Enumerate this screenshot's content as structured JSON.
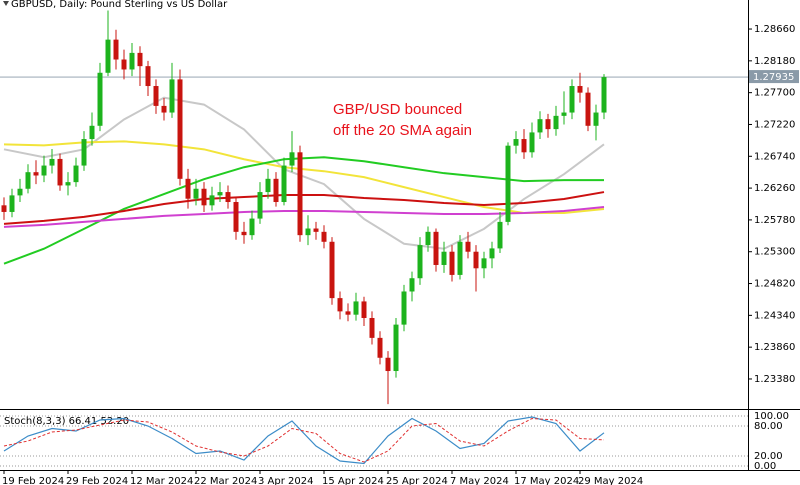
{
  "chart_data": {
    "type": "candlestick",
    "title": "GBPUSD, Daily:  Pound Sterling vs US Dollar",
    "annotation": [
      "GBP/USD bounced",
      "off the 20 SMA again"
    ],
    "annotation_color": "#e8121b",
    "categories": [
      "19 Feb 2024",
      null,
      null,
      null,
      null,
      null,
      null,
      null,
      "29 Feb 2024",
      null,
      null,
      null,
      null,
      null,
      null,
      null,
      "12 Mar 2024",
      null,
      null,
      null,
      null,
      null,
      null,
      null,
      "22 Mar 2024",
      null,
      null,
      null,
      null,
      null,
      null,
      null,
      "3 Apr 2024",
      null,
      null,
      null,
      null,
      null,
      null,
      null,
      "15 Apr 2024",
      null,
      null,
      null,
      null,
      null,
      null,
      null,
      "25 Apr 2024",
      null,
      null,
      null,
      null,
      null,
      null,
      null,
      "7 May 2024",
      null,
      null,
      null,
      null,
      null,
      null,
      null,
      "17 May 2024",
      null,
      null,
      null,
      null,
      null,
      null,
      null,
      "29 May 2024",
      null,
      null,
      null
    ],
    "open": [
      1.26,
      1.259,
      1.2615,
      1.2625,
      1.265,
      1.2645,
      1.266,
      1.267,
      1.263,
      1.2635,
      1.266,
      1.27,
      1.272,
      1.28,
      1.285,
      1.282,
      1.2805,
      1.283,
      1.281,
      1.278,
      1.275,
      1.274,
      1.279,
      1.264,
      1.261,
      1.2625,
      1.26,
      1.2615,
      1.262,
      1.2605,
      1.256,
      1.2555,
      1.258,
      1.262,
      1.264,
      1.2605,
      1.266,
      1.268,
      1.2555,
      1.2565,
      1.256,
      1.2545,
      1.246,
      1.244,
      1.2435,
      1.2455,
      1.243,
      1.24,
      1.237,
      1.235,
      1.242,
      1.247,
      1.249,
      1.254,
      1.256,
      1.251,
      1.253,
      1.2495,
      1.2545,
      1.253,
      1.2505,
      1.252,
      1.2535,
      1.2575,
      1.269,
      1.27,
      1.268,
      1.271,
      1.273,
      1.2715,
      1.2735,
      1.274,
      1.278,
      1.277,
      1.272,
      1.274
    ],
    "high": [
      1.2612,
      1.2625,
      1.264,
      1.2662,
      1.2668,
      1.2675,
      1.2685,
      1.2678,
      1.265,
      1.2672,
      1.2712,
      1.274,
      1.2815,
      1.2894,
      1.2865,
      1.2835,
      1.2845,
      1.284,
      1.2818,
      1.279,
      1.2762,
      1.2815,
      1.2805,
      1.2655,
      1.264,
      1.2635,
      1.2628,
      1.2635,
      1.263,
      1.2612,
      1.2575,
      1.2592,
      1.2635,
      1.2655,
      1.265,
      1.2672,
      1.2712,
      1.269,
      1.2585,
      1.2575,
      1.257,
      1.2552,
      1.247,
      1.2452,
      1.2468,
      1.2462,
      1.244,
      1.241,
      1.238,
      1.243,
      1.248,
      1.25,
      1.2552,
      1.2568,
      1.2565,
      1.2545,
      1.254,
      1.2555,
      1.256,
      1.254,
      1.253,
      1.2545,
      1.259,
      1.2695,
      1.2712,
      1.2715,
      1.2725,
      1.2742,
      1.2738,
      1.275,
      1.2772,
      1.279,
      1.28,
      1.2778,
      1.2752,
      1.2798
    ],
    "low": [
      1.2578,
      1.2582,
      1.2605,
      1.2618,
      1.2632,
      1.2635,
      1.2648,
      1.2622,
      1.2615,
      1.2628,
      1.2652,
      1.269,
      1.2712,
      1.2795,
      1.2805,
      1.279,
      1.2795,
      1.278,
      1.2765,
      1.2738,
      1.2728,
      1.2732,
      1.263,
      1.2595,
      1.26,
      1.259,
      1.2592,
      1.2605,
      1.2595,
      1.2548,
      1.2542,
      1.2548,
      1.2572,
      1.261,
      1.2598,
      1.26,
      1.265,
      1.2545,
      1.254,
      1.2548,
      1.2535,
      1.245,
      1.2428,
      1.2425,
      1.2426,
      1.2418,
      1.239,
      1.236,
      1.23,
      1.234,
      1.241,
      1.2455,
      1.248,
      1.253,
      1.25,
      1.2498,
      1.2485,
      1.2488,
      1.252,
      1.247,
      1.249,
      1.2505,
      1.2528,
      1.257,
      1.2678,
      1.267,
      1.2672,
      1.27,
      1.2702,
      1.2705,
      1.2722,
      1.273,
      1.2755,
      1.2712,
      1.2698,
      1.273
    ],
    "close": [
      1.259,
      1.2615,
      1.2625,
      1.265,
      1.2645,
      1.266,
      1.267,
      1.263,
      1.2635,
      1.266,
      1.27,
      1.272,
      1.28,
      1.285,
      1.282,
      1.2805,
      1.283,
      1.281,
      1.278,
      1.275,
      1.274,
      1.279,
      1.264,
      1.261,
      1.2625,
      1.26,
      1.2615,
      1.262,
      1.2605,
      1.256,
      1.2555,
      1.258,
      1.262,
      1.264,
      1.2605,
      1.266,
      1.268,
      1.2555,
      1.2565,
      1.256,
      1.2545,
      1.246,
      1.244,
      1.2435,
      1.2455,
      1.243,
      1.24,
      1.237,
      1.235,
      1.242,
      1.247,
      1.249,
      1.254,
      1.256,
      1.251,
      1.253,
      1.2495,
      1.2545,
      1.253,
      1.2505,
      1.252,
      1.2535,
      1.2575,
      1.269,
      1.27,
      1.268,
      1.271,
      1.273,
      1.2715,
      1.2735,
      1.274,
      1.278,
      1.277,
      1.272,
      1.274,
      1.27935
    ],
    "up_color": "#1db31d",
    "down_color": "#c8140f",
    "lines": [
      {
        "color": "#c8c8c8",
        "x": [
          0,
          5,
          10,
          15,
          20,
          25,
          30,
          35,
          40,
          45,
          50,
          55,
          60,
          65,
          70,
          75
        ],
        "values": [
          1.26845,
          1.26725,
          1.26845,
          1.27295,
          1.27625,
          1.2752,
          1.27145,
          1.26545,
          1.2632,
          1.25795,
          1.2542,
          1.25345,
          1.25645,
          1.26095,
          1.2647,
          1.2692
        ]
      },
      {
        "color": "#f2e43a",
        "x": [
          0,
          5,
          10,
          15,
          20,
          25,
          30,
          35,
          40,
          45,
          50,
          55,
          60,
          65,
          70,
          75
        ],
        "values": [
          1.2692,
          1.26905,
          1.2695,
          1.26965,
          1.2692,
          1.26845,
          1.26695,
          1.26575,
          1.26515,
          1.26425,
          1.26275,
          1.26125,
          1.25975,
          1.25885,
          1.25885,
          1.25945
        ]
      },
      {
        "color": "#22cc22",
        "x": [
          0,
          5,
          10,
          15,
          20,
          25,
          30,
          35,
          40,
          45,
          50,
          55,
          60,
          65,
          70,
          75
        ],
        "values": [
          1.2512,
          1.25345,
          1.25645,
          1.25945,
          1.2617,
          1.26395,
          1.26575,
          1.26695,
          1.26725,
          1.26665,
          1.26575,
          1.26485,
          1.26425,
          1.26365,
          1.2638,
          1.2638
        ]
      },
      {
        "color": "#cc1010",
        "x": [
          0,
          5,
          10,
          15,
          20,
          25,
          30,
          35,
          40,
          45,
          50,
          55,
          60,
          65,
          70,
          75
        ],
        "values": [
          1.2572,
          1.25765,
          1.25825,
          1.25915,
          1.2602,
          1.26095,
          1.26125,
          1.26155,
          1.26155,
          1.2611,
          1.2608,
          1.26035,
          1.26005,
          1.26035,
          1.26095,
          1.262
        ]
      },
      {
        "color": "#d040d0",
        "x": [
          0,
          5,
          10,
          15,
          20,
          25,
          30,
          35,
          40,
          45,
          50,
          55,
          60,
          65,
          70,
          75
        ],
        "values": [
          1.25675,
          1.25705,
          1.2575,
          1.25795,
          1.2584,
          1.2587,
          1.259,
          1.25915,
          1.25915,
          1.259,
          1.25885,
          1.2587,
          1.2587,
          1.25885,
          1.25915,
          1.25975
        ]
      }
    ],
    "ylim": [
      1.22942,
      1.29098
    ],
    "yticks": [
      {
        "value": 1.2866,
        "label": "1.28660"
      },
      {
        "value": 1.2818,
        "label": "1.28180"
      },
      {
        "value": 1.277,
        "label": "1.27700"
      },
      {
        "value": 1.2722,
        "label": "1.27220"
      },
      {
        "value": 1.2674,
        "label": "1.26740"
      },
      {
        "value": 1.2626,
        "label": "1.26260"
      },
      {
        "value": 1.2578,
        "label": "1.25780"
      },
      {
        "value": 1.253,
        "label": "1.25300"
      },
      {
        "value": 1.2482,
        "label": "1.24820"
      },
      {
        "value": 1.2434,
        "label": "1.24340"
      },
      {
        "value": 1.2386,
        "label": "1.23860"
      },
      {
        "value": 1.2338,
        "label": "1.23380"
      }
    ],
    "last_price": {
      "value": 1.27935,
      "label": "1.27935"
    },
    "stochastic": {
      "title": "Stoch(8,3,3) 66.41 52.20",
      "ylim": [
        -8,
        110
      ],
      "yticks": [
        {
          "value": 100,
          "label": "100.00"
        },
        {
          "value": 80,
          "label": "80.00"
        },
        {
          "value": 20,
          "label": "20.00"
        },
        {
          "value": 0,
          "label": "0.00"
        }
      ],
      "main": {
        "color": "#3c8cc8",
        "x": [
          0,
          3,
          6,
          9,
          12,
          15,
          18,
          21,
          24,
          27,
          30,
          33,
          36,
          39,
          42,
          45,
          48,
          51,
          54,
          57,
          60,
          63,
          66,
          69,
          72,
          75
        ],
        "values": [
          30,
          60,
          75,
          70,
          92,
          95,
          80,
          55,
          25,
          30,
          12,
          60,
          90,
          40,
          10,
          5,
          60,
          95,
          70,
          35,
          45,
          90,
          98,
          85,
          30,
          66.41
        ]
      },
      "signal": {
        "color": "#e03030",
        "x": [
          0,
          3,
          6,
          9,
          12,
          15,
          18,
          21,
          24,
          27,
          30,
          33,
          36,
          39,
          42,
          45,
          48,
          51,
          54,
          57,
          60,
          63,
          66,
          69,
          72,
          75
        ],
        "values": [
          40,
          50,
          68,
          72,
          82,
          92,
          88,
          68,
          40,
          28,
          20,
          40,
          75,
          65,
          25,
          8,
          30,
          80,
          85,
          50,
          40,
          70,
          95,
          92,
          55,
          52.2
        ]
      }
    }
  }
}
